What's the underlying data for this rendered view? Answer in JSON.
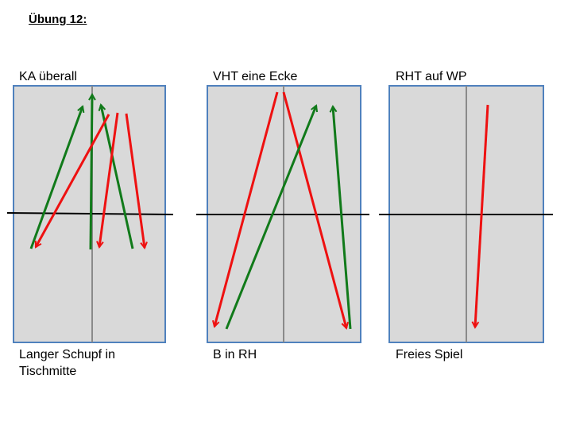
{
  "heading": "Übung 12:",
  "colors": {
    "red": "#ee1111",
    "green": "#117a1a",
    "table": "#d9d9d9",
    "border": "#4f81bd"
  },
  "panels": [
    {
      "title": "KA überall",
      "caption": [
        "Langer Schupf in",
        "Tischmitte"
      ],
      "arrows": [
        {
          "color": "green",
          "from": "start1",
          "to": "end1"
        },
        {
          "color": "green",
          "from": "start2",
          "to": "end2"
        },
        {
          "color": "green",
          "from": "start3",
          "to": "end3"
        },
        {
          "color": "red",
          "from": "start4",
          "to": "end4"
        },
        {
          "color": "red",
          "from": "start5",
          "to": "end5"
        },
        {
          "color": "red",
          "from": "start6",
          "to": "end6"
        }
      ]
    },
    {
      "title": "VHT eine Ecke",
      "caption": [
        "B in RH"
      ],
      "arrows": [
        {
          "color": "red"
        },
        {
          "color": "red"
        },
        {
          "color": "green"
        },
        {
          "color": "green"
        }
      ]
    },
    {
      "title": "RHT auf WP",
      "caption": [
        "Freies Spiel"
      ],
      "arrows": [
        {
          "color": "red"
        }
      ]
    }
  ]
}
